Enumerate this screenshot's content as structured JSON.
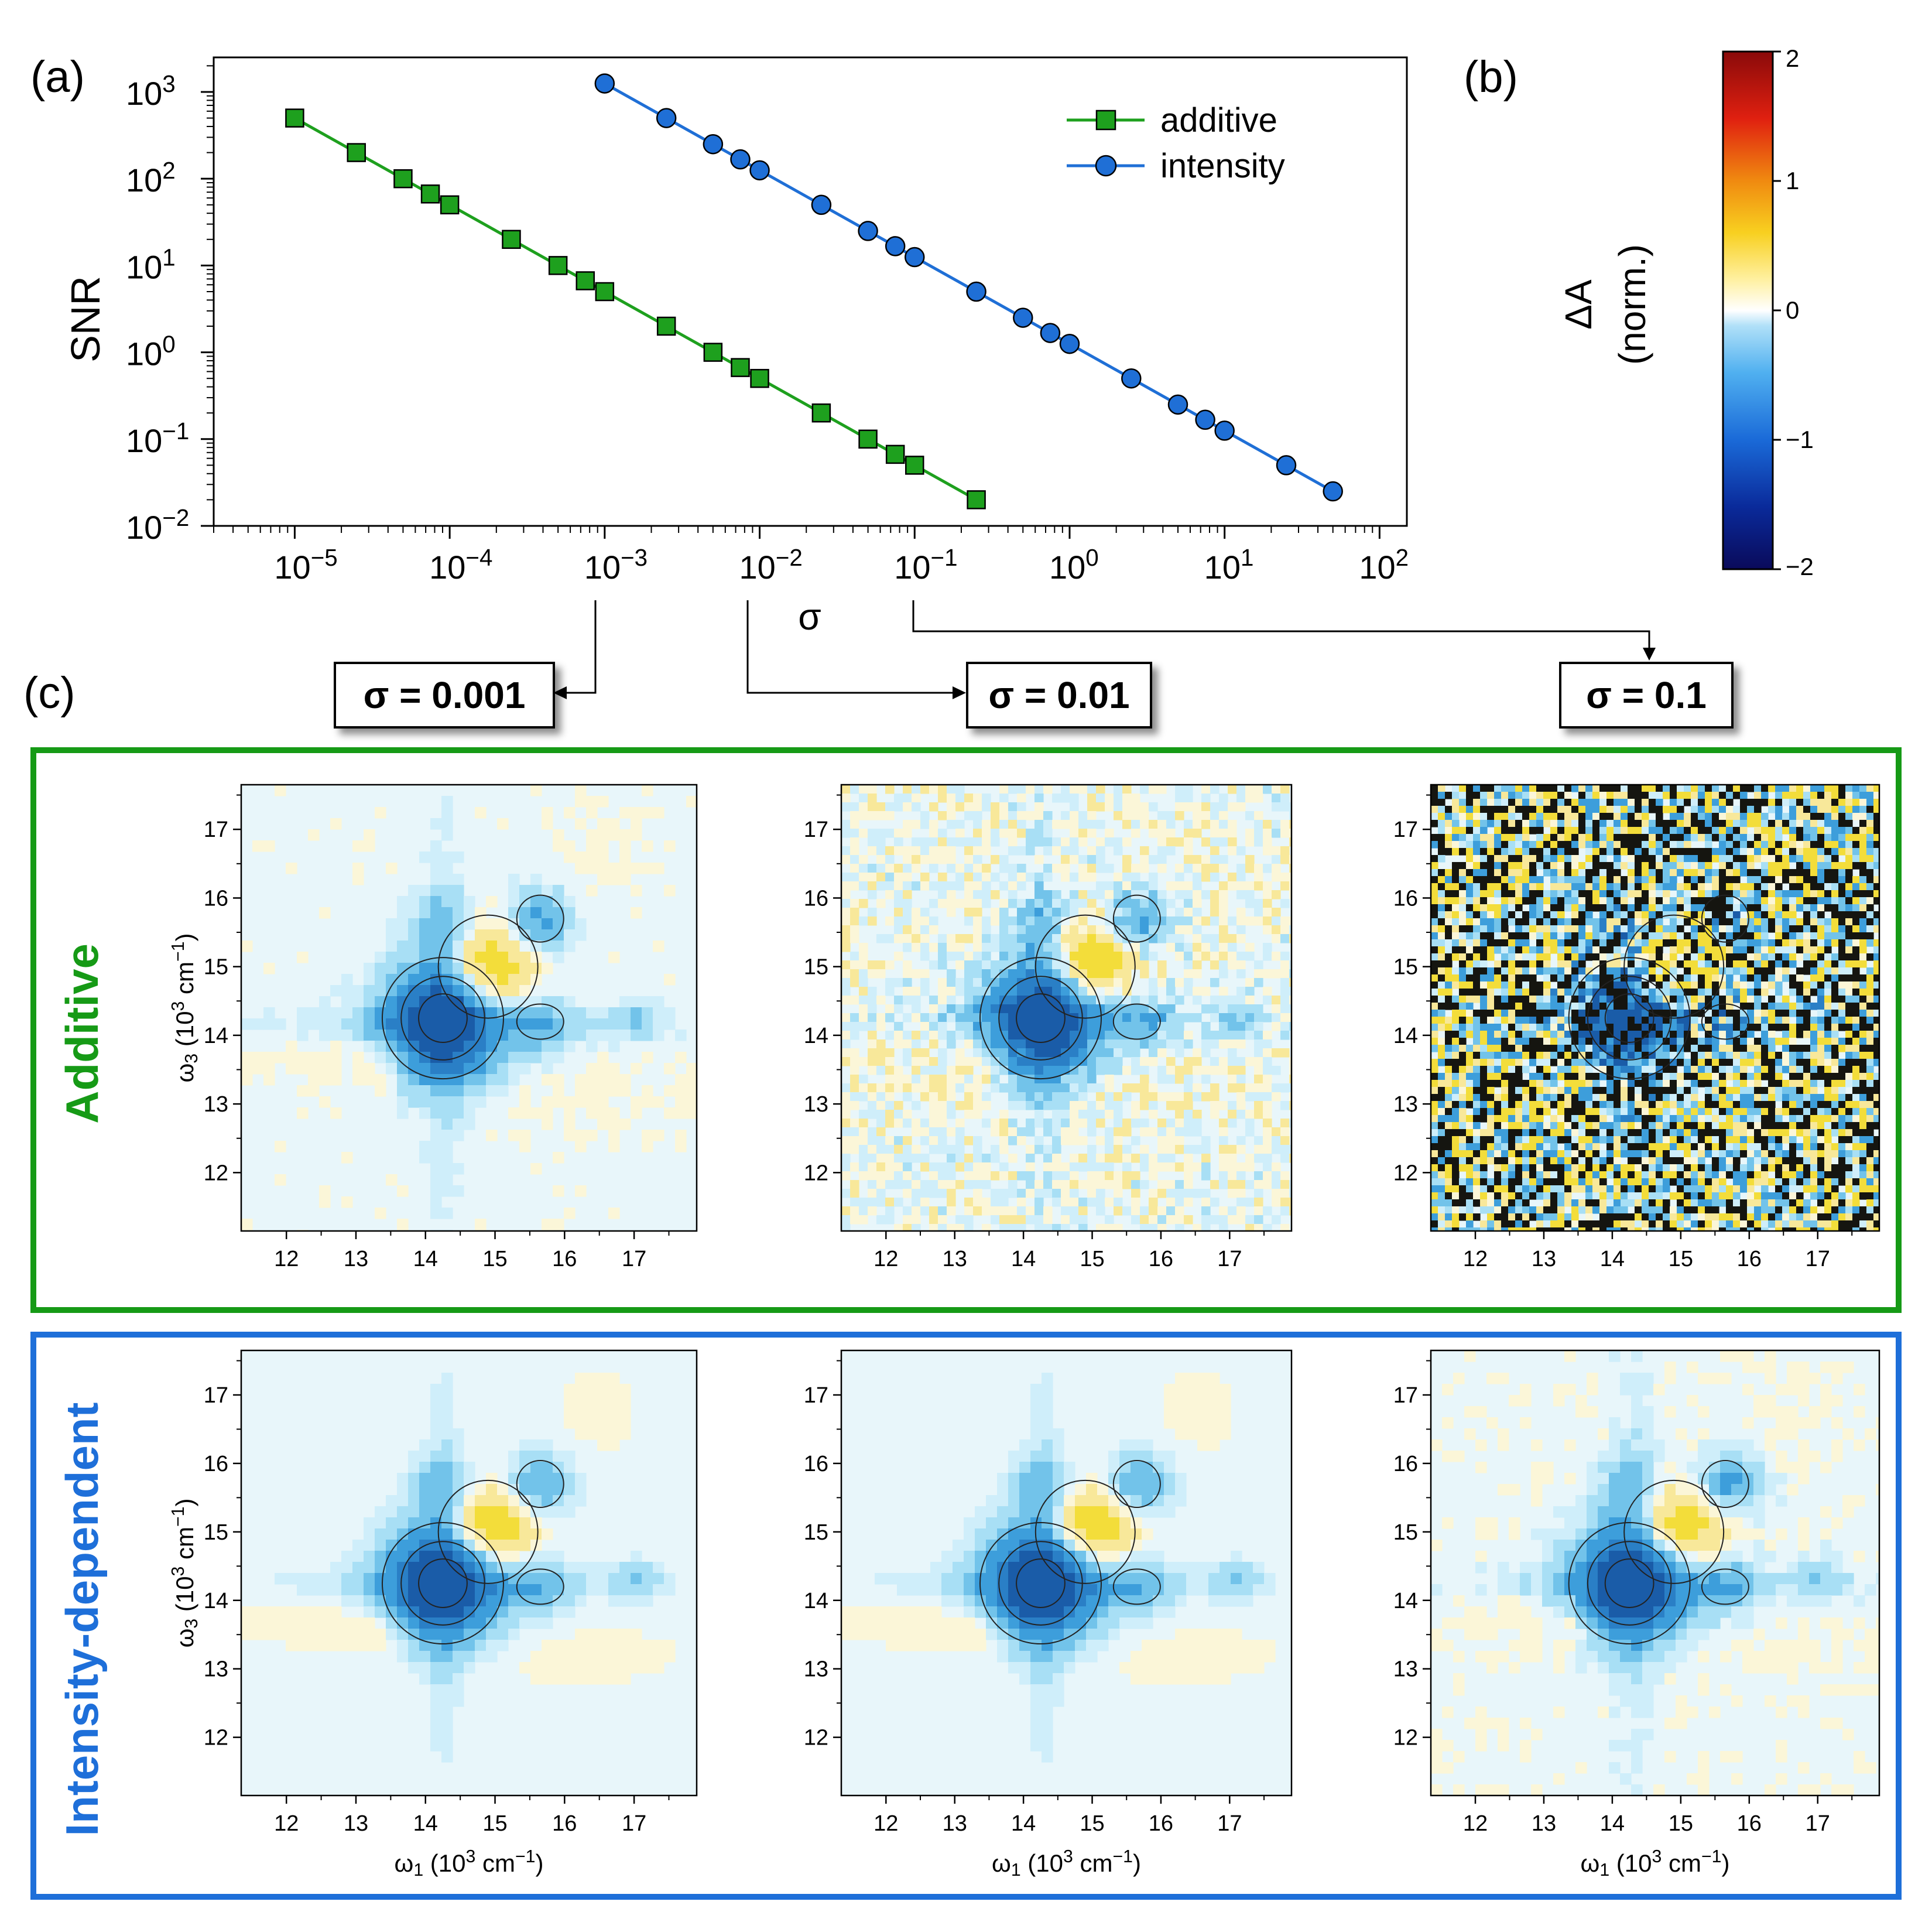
{
  "panel_labels": {
    "a": "(a)",
    "b": "(b)",
    "c": "(c)"
  },
  "colors": {
    "additive": "#1ea01e",
    "intensity": "#1f6fd6",
    "additive_frame": "#169a16",
    "intensity_frame": "#1e6fd9"
  },
  "chart_data": [
    {
      "type": "line",
      "xscale": "log",
      "yscale": "log",
      "xlabel": "σ",
      "ylabel": "SNR",
      "xlim": [
        3e-06,
        150
      ],
      "ylim": [
        0.01,
        2500
      ],
      "x_ticks": [
        1e-05,
        0.0001,
        0.001,
        0.01,
        0.1,
        1,
        10,
        100
      ],
      "x_tick_labels": [
        [
          "10",
          "−5"
        ],
        [
          "10",
          "−4"
        ],
        [
          "10",
          "−3"
        ],
        [
          "10",
          "−2"
        ],
        [
          "10",
          "−1"
        ],
        [
          "10",
          "0"
        ],
        [
          "10",
          "1"
        ],
        [
          "10",
          "2"
        ]
      ],
      "y_ticks": [
        0.01,
        0.1,
        1,
        10,
        100,
        1000
      ],
      "y_tick_labels": [
        [
          "10",
          "−2"
        ],
        [
          "10",
          "−1"
        ],
        [
          "10",
          "0"
        ],
        [
          "10",
          "1"
        ],
        [
          "10",
          "2"
        ],
        [
          "10",
          "3"
        ]
      ],
      "legend_position": "top-right",
      "series": [
        {
          "name": "additive",
          "marker": "square",
          "x": [
            1e-05,
            2.5e-05,
            5e-05,
            7.5e-05,
            0.0001,
            0.00025,
            0.0005,
            0.00075,
            0.001,
            0.0025,
            0.005,
            0.0075,
            0.01,
            0.025,
            0.05,
            0.075,
            0.1,
            0.25
          ],
          "y": [
            500,
            200,
            100,
            66.7,
            50,
            20,
            10,
            6.67,
            5,
            2,
            1,
            0.667,
            0.5,
            0.2,
            0.1,
            0.0667,
            0.05,
            0.02
          ]
        },
        {
          "name": "intensity",
          "marker": "circle",
          "x": [
            0.001,
            0.0025,
            0.005,
            0.0075,
            0.01,
            0.025,
            0.05,
            0.075,
            0.1,
            0.25,
            0.5,
            0.75,
            1,
            2.5,
            5,
            7.5,
            10,
            25,
            50
          ],
          "y": [
            1250,
            500,
            250,
            167,
            125,
            50,
            25,
            16.7,
            12.5,
            5,
            2.5,
            1.67,
            1.25,
            0.5,
            0.25,
            0.167,
            0.125,
            0.05,
            0.025
          ]
        }
      ]
    },
    {
      "type": "heatmap",
      "title": "colorbar",
      "label_line1": "ΔA",
      "label_line2": "(norm.)",
      "range": [
        -2,
        2
      ],
      "ticks": [
        2,
        1,
        0,
        -1,
        -2
      ],
      "tick_labels": [
        "2",
        "1",
        "0",
        "−1",
        "−2"
      ]
    },
    {
      "type": "heatmap",
      "xlabel": [
        "ω",
        "1",
        " (10",
        "3",
        " cm",
        "−1",
        ")"
      ],
      "ylabel": [
        "ω",
        "3",
        " (10",
        "3",
        " cm",
        "−1",
        ")"
      ],
      "x_ticks": [
        12,
        13,
        14,
        15,
        16,
        17
      ],
      "y_ticks": [
        12,
        13,
        14,
        15,
        16,
        17
      ],
      "xlim": [
        11.35,
        17.9
      ],
      "ylim": [
        11.15,
        17.65
      ],
      "sigma_labels": [
        "σ = 0.001",
        "σ = 0.01",
        "σ = 0.1"
      ],
      "row_titles": [
        "Additive",
        "Intensity-dependent"
      ],
      "peaks": [
        {
          "x": 14.25,
          "y": 14.25,
          "amp": -1.6,
          "sx": 0.55,
          "sy": 0.55
        },
        {
          "x": 14.9,
          "y": 15.0,
          "amp": 0.75,
          "sx": 0.42,
          "sy": 0.4
        },
        {
          "x": 15.65,
          "y": 15.7,
          "amp": -0.55,
          "sx": 0.3,
          "sy": 0.3
        },
        {
          "x": 14.2,
          "y": 15.65,
          "amp": -0.35,
          "sx": 0.3,
          "sy": 0.3
        },
        {
          "x": 15.65,
          "y": 14.2,
          "amp": -0.35,
          "sx": 0.3,
          "sy": 0.3
        },
        {
          "x": 13.4,
          "y": 13.6,
          "amp": 0.18,
          "sx": 0.25,
          "sy": 0.25
        },
        {
          "x": 17.0,
          "y": 14.3,
          "amp": -0.25,
          "sx": 0.25,
          "sy": 0.2
        }
      ]
    }
  ]
}
